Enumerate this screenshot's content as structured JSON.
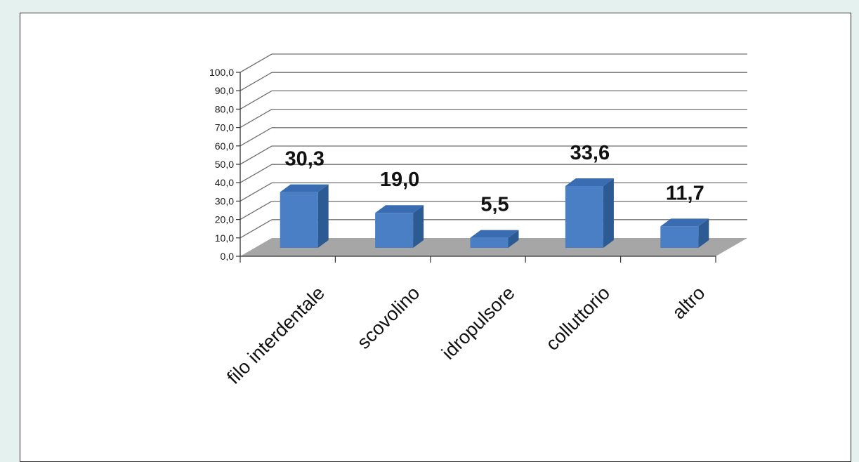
{
  "colors": {
    "page_background": "#e4f1ef",
    "bar_front": "#4a7fc6",
    "bar_side": "#2c5a92",
    "bar_top": "#3a6cb2",
    "floor": "#a6a6a6",
    "gridline": "#6f6f6f"
  },
  "chart_data": {
    "type": "bar",
    "style": "3d",
    "categories": [
      "filo interdentale",
      "scovolino",
      "idropulsore",
      "colluttorio",
      "altro"
    ],
    "values": [
      30.3,
      19.0,
      5.5,
      33.6,
      11.7
    ],
    "data_labels": [
      "30,3",
      "19,0",
      "5,5",
      "33,6",
      "11,7"
    ],
    "ylim": [
      0,
      100
    ],
    "y_ticks": [
      0,
      10,
      20,
      30,
      40,
      50,
      60,
      70,
      80,
      90,
      100
    ],
    "y_tick_labels": [
      "0,0",
      "10,0",
      "20,0",
      "30,0",
      "40,0",
      "50,0",
      "60,0",
      "70,0",
      "80,0",
      "90,0",
      "100,0"
    ],
    "grid": true,
    "legend": false
  }
}
